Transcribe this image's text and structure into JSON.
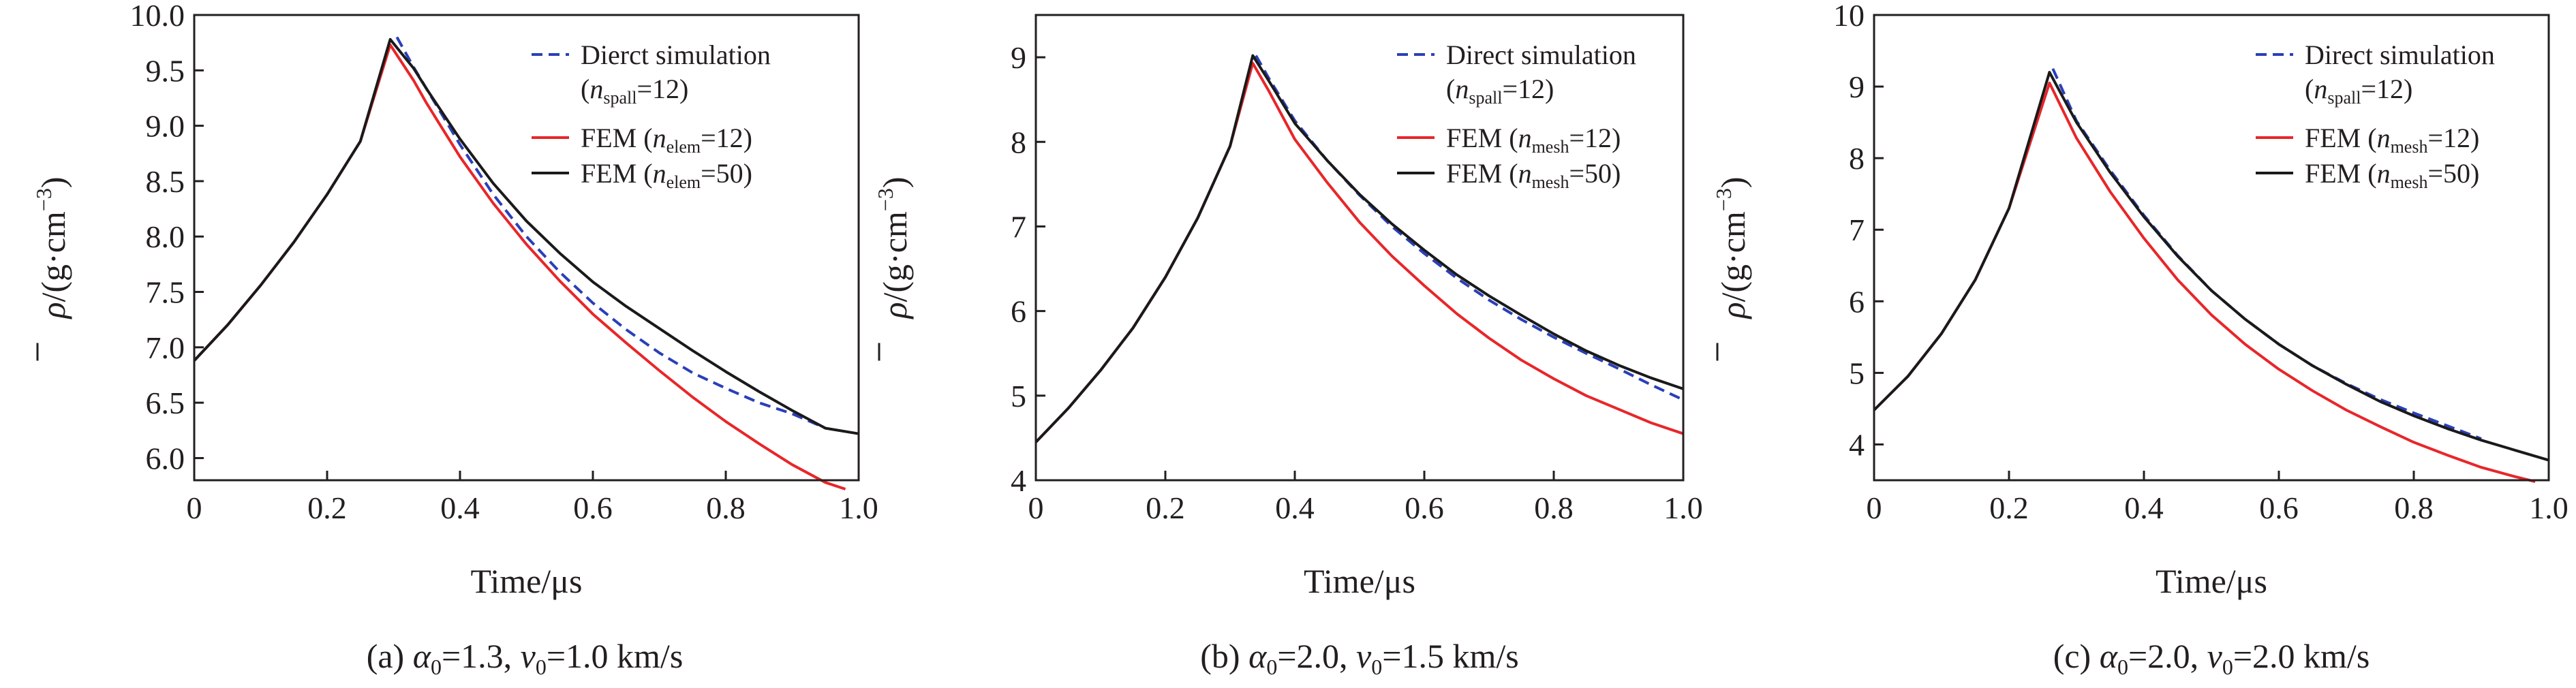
{
  "colors": {
    "direct": "#2a3fb8",
    "fem_coarse": "#e8262a",
    "fem_fine": "#1a1a1a",
    "axis": "#231f20"
  },
  "chart_data": [
    {
      "type": "line",
      "caption": {
        "letter": "(a) ",
        "p1": "=1.3, ",
        "p2": "=1.0 km/s"
      },
      "xlabel": "Time/μs",
      "xlim": [
        0,
        1.0
      ],
      "ylim": [
        5.8,
        10.0
      ],
      "xticks": [
        "0",
        "0.2",
        "0.4",
        "0.6",
        "0.8",
        "1.0"
      ],
      "xtick_values": [
        0,
        0.2,
        0.4,
        0.6,
        0.8,
        1.0
      ],
      "yticks": [
        "6.0",
        "6.5",
        "7.0",
        "7.5",
        "8.0",
        "8.5",
        "9.0",
        "9.5",
        "10.0"
      ],
      "ytick_values": [
        6.0,
        6.5,
        7.0,
        7.5,
        8.0,
        8.5,
        9.0,
        9.5,
        10.0
      ],
      "legend": [
        {
          "pre": "Dierct simulation",
          "line2": true,
          "sub": "spall",
          "post": "=12)",
          "style": "dashed",
          "color": "direct"
        },
        {
          "pre": "FEM (",
          "sub": "elem",
          "post": "=12)",
          "style": "solid",
          "color": "fem_coarse"
        },
        {
          "pre": "FEM (",
          "sub": "elem",
          "post": "=50)",
          "style": "solid",
          "color": "fem_fine"
        }
      ],
      "series": [
        {
          "legend_index": 0,
          "x": [
            0.305,
            0.33,
            0.35,
            0.4,
            0.45,
            0.5,
            0.55,
            0.6,
            0.65,
            0.7,
            0.75,
            0.8,
            0.85,
            0.9,
            0.95
          ],
          "y": [
            9.8,
            9.53,
            9.33,
            8.83,
            8.38,
            8.0,
            7.68,
            7.4,
            7.16,
            6.95,
            6.77,
            6.63,
            6.5,
            6.4,
            6.27
          ]
        },
        {
          "legend_index": 1,
          "x": [
            0,
            0.05,
            0.1,
            0.15,
            0.2,
            0.25,
            0.295,
            0.33,
            0.35,
            0.4,
            0.45,
            0.5,
            0.55,
            0.6,
            0.65,
            0.7,
            0.75,
            0.8,
            0.85,
            0.9,
            0.95,
            0.98
          ],
          "y": [
            6.88,
            7.2,
            7.56,
            7.95,
            8.38,
            8.86,
            9.73,
            9.41,
            9.2,
            8.72,
            8.3,
            7.93,
            7.6,
            7.3,
            7.04,
            6.79,
            6.55,
            6.33,
            6.13,
            5.94,
            5.78,
            5.72
          ]
        },
        {
          "legend_index": 2,
          "x": [
            0,
            0.05,
            0.1,
            0.15,
            0.2,
            0.25,
            0.295,
            0.33,
            0.35,
            0.4,
            0.45,
            0.5,
            0.55,
            0.6,
            0.65,
            0.7,
            0.75,
            0.8,
            0.85,
            0.9,
            0.95,
            1.0
          ],
          "y": [
            6.88,
            7.2,
            7.56,
            7.95,
            8.38,
            8.86,
            9.78,
            9.52,
            9.33,
            8.88,
            8.48,
            8.14,
            7.85,
            7.59,
            7.37,
            7.17,
            6.97,
            6.78,
            6.6,
            6.43,
            6.27,
            6.22
          ]
        }
      ]
    },
    {
      "type": "line",
      "caption": {
        "letter": "(b) ",
        "p1": "=2.0, ",
        "p2": "=1.5 km/s"
      },
      "xlabel": "Time/μs",
      "xlim": [
        0,
        1.0
      ],
      "ylim": [
        4,
        9.5
      ],
      "xticks": [
        "0",
        "0.2",
        "0.4",
        "0.6",
        "0.8",
        "1.0"
      ],
      "xtick_values": [
        0,
        0.2,
        0.4,
        0.6,
        0.8,
        1.0
      ],
      "yticks": [
        "4",
        "5",
        "6",
        "7",
        "8",
        "9"
      ],
      "ytick_values": [
        4,
        5,
        6,
        7,
        8,
        9
      ],
      "legend": [
        {
          "pre": "Direct simulation",
          "line2": true,
          "sub": "spall",
          "post": "=12)",
          "style": "dashed",
          "color": "direct"
        },
        {
          "pre": "FEM (",
          "sub": "mesh",
          "post": "=12)",
          "style": "solid",
          "color": "fem_coarse"
        },
        {
          "pre": "FEM (",
          "sub": "mesh",
          "post": "=50)",
          "style": "solid",
          "color": "fem_fine"
        }
      ],
      "series": [
        {
          "legend_index": 0,
          "x": [
            0.34,
            0.36,
            0.4,
            0.45,
            0.5,
            0.55,
            0.6,
            0.65,
            0.7,
            0.75,
            0.8,
            0.85,
            0.9,
            0.95,
            1.0
          ],
          "y": [
            9.02,
            8.75,
            8.25,
            7.78,
            7.37,
            7.0,
            6.68,
            6.39,
            6.13,
            5.9,
            5.69,
            5.5,
            5.32,
            5.13,
            4.95
          ]
        },
        {
          "legend_index": 1,
          "x": [
            0,
            0.05,
            0.1,
            0.15,
            0.2,
            0.25,
            0.3,
            0.335,
            0.36,
            0.4,
            0.45,
            0.5,
            0.55,
            0.6,
            0.65,
            0.7,
            0.75,
            0.8,
            0.85,
            0.9,
            0.95,
            1.0
          ],
          "y": [
            4.45,
            4.85,
            5.3,
            5.8,
            6.4,
            7.1,
            7.95,
            8.93,
            8.6,
            8.03,
            7.52,
            7.05,
            6.65,
            6.3,
            5.97,
            5.68,
            5.42,
            5.2,
            5.0,
            4.84,
            4.68,
            4.55
          ]
        },
        {
          "legend_index": 2,
          "x": [
            0,
            0.05,
            0.1,
            0.15,
            0.2,
            0.25,
            0.3,
            0.335,
            0.36,
            0.4,
            0.45,
            0.5,
            0.55,
            0.6,
            0.65,
            0.7,
            0.75,
            0.8,
            0.85,
            0.9,
            0.95,
            1.0
          ],
          "y": [
            4.45,
            4.85,
            5.3,
            5.8,
            6.4,
            7.1,
            7.95,
            9.02,
            8.72,
            8.22,
            7.78,
            7.38,
            7.03,
            6.72,
            6.43,
            6.18,
            5.95,
            5.73,
            5.53,
            5.36,
            5.21,
            5.08
          ]
        }
      ]
    },
    {
      "type": "line",
      "caption": {
        "letter": "(c) ",
        "p1": "=2.0, ",
        "p2": "=2.0 km/s"
      },
      "xlabel": "Time/μs",
      "xlim": [
        0,
        1.0
      ],
      "ylim": [
        3.5,
        10
      ],
      "xticks": [
        "0",
        "0.2",
        "0.4",
        "0.6",
        "0.8",
        "1.0"
      ],
      "xtick_values": [
        0,
        0.2,
        0.4,
        0.6,
        0.8,
        1.0
      ],
      "yticks": [
        "4",
        "5",
        "6",
        "7",
        "8",
        "9",
        "10"
      ],
      "ytick_values": [
        4,
        5,
        6,
        7,
        8,
        9,
        10
      ],
      "legend": [
        {
          "pre": "Direct simulation",
          "line2": true,
          "sub": "spall",
          "post": "=12)",
          "style": "dashed",
          "color": "direct"
        },
        {
          "pre": "FEM (",
          "sub": "mesh",
          "post": "=12)",
          "style": "solid",
          "color": "fem_coarse"
        },
        {
          "pre": "FEM (",
          "sub": "mesh",
          "post": "=50)",
          "style": "solid",
          "color": "fem_fine"
        }
      ],
      "series": [
        {
          "legend_index": 0,
          "x": [
            0.265,
            0.3,
            0.35,
            0.4,
            0.45,
            0.5,
            0.55,
            0.6,
            0.65,
            0.7,
            0.75,
            0.8,
            0.85,
            0.9
          ],
          "y": [
            9.25,
            8.52,
            7.83,
            7.2,
            6.64,
            6.15,
            5.75,
            5.4,
            5.1,
            4.85,
            4.63,
            4.44,
            4.26,
            4.08
          ]
        },
        {
          "legend_index": 1,
          "x": [
            0,
            0.05,
            0.1,
            0.15,
            0.2,
            0.26,
            0.3,
            0.35,
            0.4,
            0.45,
            0.5,
            0.55,
            0.6,
            0.65,
            0.7,
            0.75,
            0.8,
            0.85,
            0.9,
            0.95,
            0.98
          ],
          "y": [
            4.48,
            4.95,
            5.55,
            6.3,
            7.3,
            9.05,
            8.28,
            7.53,
            6.88,
            6.3,
            5.81,
            5.4,
            5.05,
            4.75,
            4.48,
            4.25,
            4.03,
            3.85,
            3.68,
            3.55,
            3.48
          ]
        },
        {
          "legend_index": 2,
          "x": [
            0,
            0.05,
            0.1,
            0.15,
            0.2,
            0.26,
            0.3,
            0.35,
            0.4,
            0.45,
            0.5,
            0.55,
            0.6,
            0.65,
            0.7,
            0.75,
            0.8,
            0.85,
            0.9,
            0.95,
            1.0
          ],
          "y": [
            4.48,
            4.95,
            5.55,
            6.3,
            7.3,
            9.2,
            8.5,
            7.8,
            7.18,
            6.63,
            6.15,
            5.75,
            5.4,
            5.1,
            4.84,
            4.6,
            4.4,
            4.22,
            4.06,
            3.92,
            3.78
          ]
        }
      ]
    }
  ]
}
